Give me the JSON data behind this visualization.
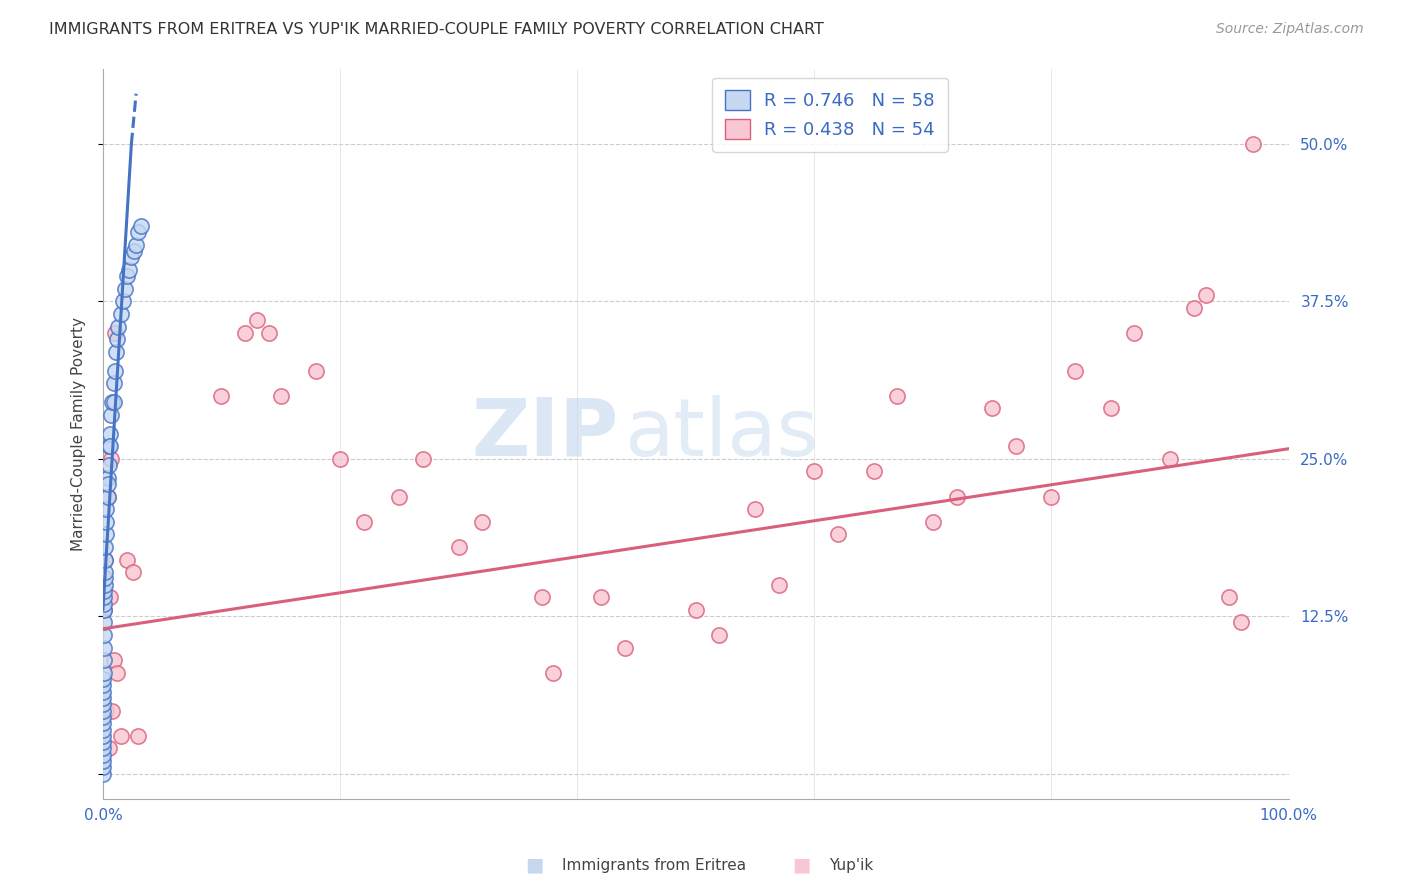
{
  "title": "IMMIGRANTS FROM ERITREA VS YUP'IK MARRIED-COUPLE FAMILY POVERTY CORRELATION CHART",
  "source": "Source: ZipAtlas.com",
  "ylabel": "Married-Couple Family Poverty",
  "xlim": [
    0.0,
    1.0
  ],
  "ylim": [
    -0.02,
    0.56
  ],
  "plot_ylim": [
    -0.02,
    0.56
  ],
  "xticks": [
    0.0,
    0.2,
    0.4,
    0.6,
    0.8,
    1.0
  ],
  "xticklabels": [
    "0.0%",
    "",
    "",
    "",
    "",
    "100.0%"
  ],
  "ytick_positions": [
    0.0,
    0.125,
    0.25,
    0.375,
    0.5
  ],
  "yticklabels": [
    "",
    "12.5%",
    "25.0%",
    "37.5%",
    "50.0%"
  ],
  "color_blue": "#c5d8f0",
  "color_pink": "#f9c6d3",
  "line_blue": "#4472c4",
  "line_pink": "#d9607a",
  "watermark_zip": "ZIP",
  "watermark_atlas": "atlas",
  "background": "#ffffff",
  "blue_scatter": [
    [
      0.0005,
      0.0
    ],
    [
      0.0005,
      0.005
    ],
    [
      0.0005,
      0.01
    ],
    [
      0.0005,
      0.015
    ],
    [
      0.0005,
      0.02
    ],
    [
      0.0005,
      0.025
    ],
    [
      0.0005,
      0.03
    ],
    [
      0.0005,
      0.035
    ],
    [
      0.0005,
      0.04
    ],
    [
      0.0005,
      0.045
    ],
    [
      0.0005,
      0.05
    ],
    [
      0.0005,
      0.055
    ],
    [
      0.0005,
      0.06
    ],
    [
      0.0005,
      0.065
    ],
    [
      0.0005,
      0.07
    ],
    [
      0.0005,
      0.075
    ],
    [
      0.001,
      0.08
    ],
    [
      0.001,
      0.09
    ],
    [
      0.001,
      0.1
    ],
    [
      0.001,
      0.11
    ],
    [
      0.001,
      0.12
    ],
    [
      0.001,
      0.13
    ],
    [
      0.001,
      0.135
    ],
    [
      0.001,
      0.14
    ],
    [
      0.001,
      0.145
    ],
    [
      0.0015,
      0.15
    ],
    [
      0.0015,
      0.155
    ],
    [
      0.0015,
      0.16
    ],
    [
      0.002,
      0.17
    ],
    [
      0.002,
      0.18
    ],
    [
      0.0025,
      0.19
    ],
    [
      0.003,
      0.2
    ],
    [
      0.003,
      0.21
    ],
    [
      0.004,
      0.22
    ],
    [
      0.004,
      0.235
    ],
    [
      0.005,
      0.245
    ],
    [
      0.005,
      0.26
    ],
    [
      0.006,
      0.27
    ],
    [
      0.007,
      0.285
    ],
    [
      0.008,
      0.295
    ],
    [
      0.009,
      0.31
    ],
    [
      0.01,
      0.32
    ],
    [
      0.011,
      0.335
    ],
    [
      0.012,
      0.345
    ],
    [
      0.013,
      0.355
    ],
    [
      0.015,
      0.365
    ],
    [
      0.017,
      0.375
    ],
    [
      0.019,
      0.385
    ],
    [
      0.02,
      0.395
    ],
    [
      0.022,
      0.4
    ],
    [
      0.024,
      0.41
    ],
    [
      0.026,
      0.415
    ],
    [
      0.028,
      0.42
    ],
    [
      0.03,
      0.43
    ],
    [
      0.032,
      0.435
    ],
    [
      0.009,
      0.295
    ],
    [
      0.006,
      0.26
    ],
    [
      0.004,
      0.23
    ]
  ],
  "pink_scatter": [
    [
      0.001,
      0.13
    ],
    [
      0.002,
      0.17
    ],
    [
      0.003,
      0.05
    ],
    [
      0.004,
      0.22
    ],
    [
      0.005,
      0.02
    ],
    [
      0.006,
      0.14
    ],
    [
      0.007,
      0.25
    ],
    [
      0.008,
      0.05
    ],
    [
      0.009,
      0.09
    ],
    [
      0.01,
      0.35
    ],
    [
      0.012,
      0.08
    ],
    [
      0.015,
      0.03
    ],
    [
      0.02,
      0.17
    ],
    [
      0.025,
      0.16
    ],
    [
      0.03,
      0.03
    ],
    [
      0.1,
      0.3
    ],
    [
      0.12,
      0.35
    ],
    [
      0.13,
      0.36
    ],
    [
      0.14,
      0.35
    ],
    [
      0.15,
      0.3
    ],
    [
      0.18,
      0.32
    ],
    [
      0.2,
      0.25
    ],
    [
      0.22,
      0.2
    ],
    [
      0.25,
      0.22
    ],
    [
      0.27,
      0.25
    ],
    [
      0.3,
      0.18
    ],
    [
      0.32,
      0.2
    ],
    [
      0.37,
      0.14
    ],
    [
      0.38,
      0.08
    ],
    [
      0.42,
      0.14
    ],
    [
      0.44,
      0.1
    ],
    [
      0.5,
      0.13
    ],
    [
      0.52,
      0.11
    ],
    [
      0.55,
      0.21
    ],
    [
      0.57,
      0.15
    ],
    [
      0.6,
      0.24
    ],
    [
      0.62,
      0.19
    ],
    [
      0.65,
      0.24
    ],
    [
      0.67,
      0.3
    ],
    [
      0.7,
      0.2
    ],
    [
      0.72,
      0.22
    ],
    [
      0.75,
      0.29
    ],
    [
      0.77,
      0.26
    ],
    [
      0.8,
      0.22
    ],
    [
      0.82,
      0.32
    ],
    [
      0.85,
      0.29
    ],
    [
      0.87,
      0.35
    ],
    [
      0.9,
      0.25
    ],
    [
      0.92,
      0.37
    ],
    [
      0.93,
      0.38
    ],
    [
      0.95,
      0.14
    ],
    [
      0.96,
      0.12
    ],
    [
      0.97,
      0.5
    ]
  ],
  "blue_line_solid": [
    [
      0.0,
      0.13
    ],
    [
      0.024,
      0.5
    ]
  ],
  "blue_line_dashed": [
    [
      0.024,
      0.5
    ],
    [
      0.028,
      0.54
    ]
  ],
  "pink_line": [
    [
      0.0,
      0.115
    ],
    [
      1.0,
      0.258
    ]
  ]
}
